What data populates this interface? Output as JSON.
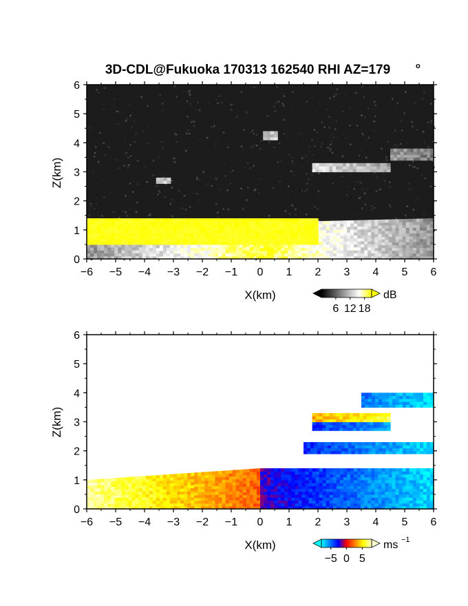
{
  "title": "3D-CDL@Fukuoka 170313 162540 RHI AZ=179",
  "title_degree": "o",
  "chart_data": [
    {
      "type": "heatmap",
      "variable": "reflectivity",
      "xlabel": "X(km)",
      "ylabel": "Z(km)",
      "xlim": [
        -6,
        6
      ],
      "ylim": [
        0,
        6
      ],
      "x_ticks": [
        "-6",
        "-5",
        "-4",
        "-3",
        "-2",
        "-1",
        "0",
        "1",
        "2",
        "3",
        "4",
        "5",
        "6"
      ],
      "y_ticks": [
        "0",
        "1",
        "2",
        "3",
        "4",
        "5",
        "6"
      ],
      "colorbar": {
        "unit": "dB",
        "ticks": [
          "6",
          "12",
          "18"
        ],
        "tick_values": [
          6,
          12,
          18
        ],
        "range": [
          0,
          21
        ],
        "colors": [
          "#000000",
          "#555555",
          "#aaaaaa",
          "#ffffff",
          "#ffff00"
        ]
      },
      "features": [
        {
          "name": "near-ground echo fan",
          "x_range": [
            -6,
            6
          ],
          "z_top_km": [
            1.1,
            1.4
          ]
        },
        {
          "name": "strong echo (>18 dB) layer",
          "x_range": [
            -6,
            2
          ],
          "z_km": [
            0.5,
            1.4
          ]
        },
        {
          "name": "aloft layer",
          "x_range": [
            1.8,
            4.5
          ],
          "z_km": [
            3.0,
            3.3
          ]
        },
        {
          "name": "aloft layer",
          "x_range": [
            4.5,
            6
          ],
          "z_km": [
            3.4,
            3.8
          ]
        },
        {
          "name": "echo patch",
          "x_range": [
            0.1,
            0.6
          ],
          "z_km": [
            4.1,
            4.4
          ]
        },
        {
          "name": "echo patch",
          "x_range": [
            -3.6,
            -3.1
          ],
          "z_km": [
            2.6,
            2.8
          ]
        }
      ]
    },
    {
      "type": "heatmap",
      "variable": "radial velocity",
      "xlabel": "X(km)",
      "ylabel": "Z(km)",
      "xlim": [
        -6,
        6
      ],
      "ylim": [
        0,
        6
      ],
      "x_ticks": [
        "-6",
        "-5",
        "-4",
        "-3",
        "-2",
        "-1",
        "0",
        "1",
        "2",
        "3",
        "4",
        "5",
        "6"
      ],
      "y_ticks": [
        "0",
        "1",
        "2",
        "3",
        "4",
        "5",
        "6"
      ],
      "colorbar": {
        "unit": "ms",
        "unit_exponent": "−1",
        "ticks": [
          "−5",
          "0",
          "5"
        ],
        "tick_values": [
          -5,
          0,
          5
        ],
        "range": [
          -8,
          8
        ],
        "colors": [
          "#00ffff",
          "#0080ff",
          "#0000ff",
          "#ff0000",
          "#ff8000",
          "#ffff00",
          "#ffffcc"
        ]
      },
      "features": [
        {
          "name": "low-level flow",
          "x_range": [
            -6,
            0
          ],
          "z_top_km": [
            1.0,
            1.4
          ],
          "sign": "positive"
        },
        {
          "name": "low-level flow",
          "x_range": [
            0,
            6
          ],
          "z_top_km": [
            1.4,
            1.4
          ],
          "sign": "negative"
        },
        {
          "name": "aloft layer",
          "x_range": [
            1.8,
            4.5
          ],
          "z_km": [
            2.7,
            3.3
          ],
          "sign": "mixed"
        },
        {
          "name": "aloft layer",
          "x_range": [
            1.5,
            6
          ],
          "z_km": [
            1.9,
            2.3
          ],
          "sign": "negative"
        },
        {
          "name": "aloft layer",
          "x_range": [
            3.5,
            6
          ],
          "z_km": [
            3.5,
            4.0
          ],
          "sign": "negative"
        }
      ]
    }
  ]
}
